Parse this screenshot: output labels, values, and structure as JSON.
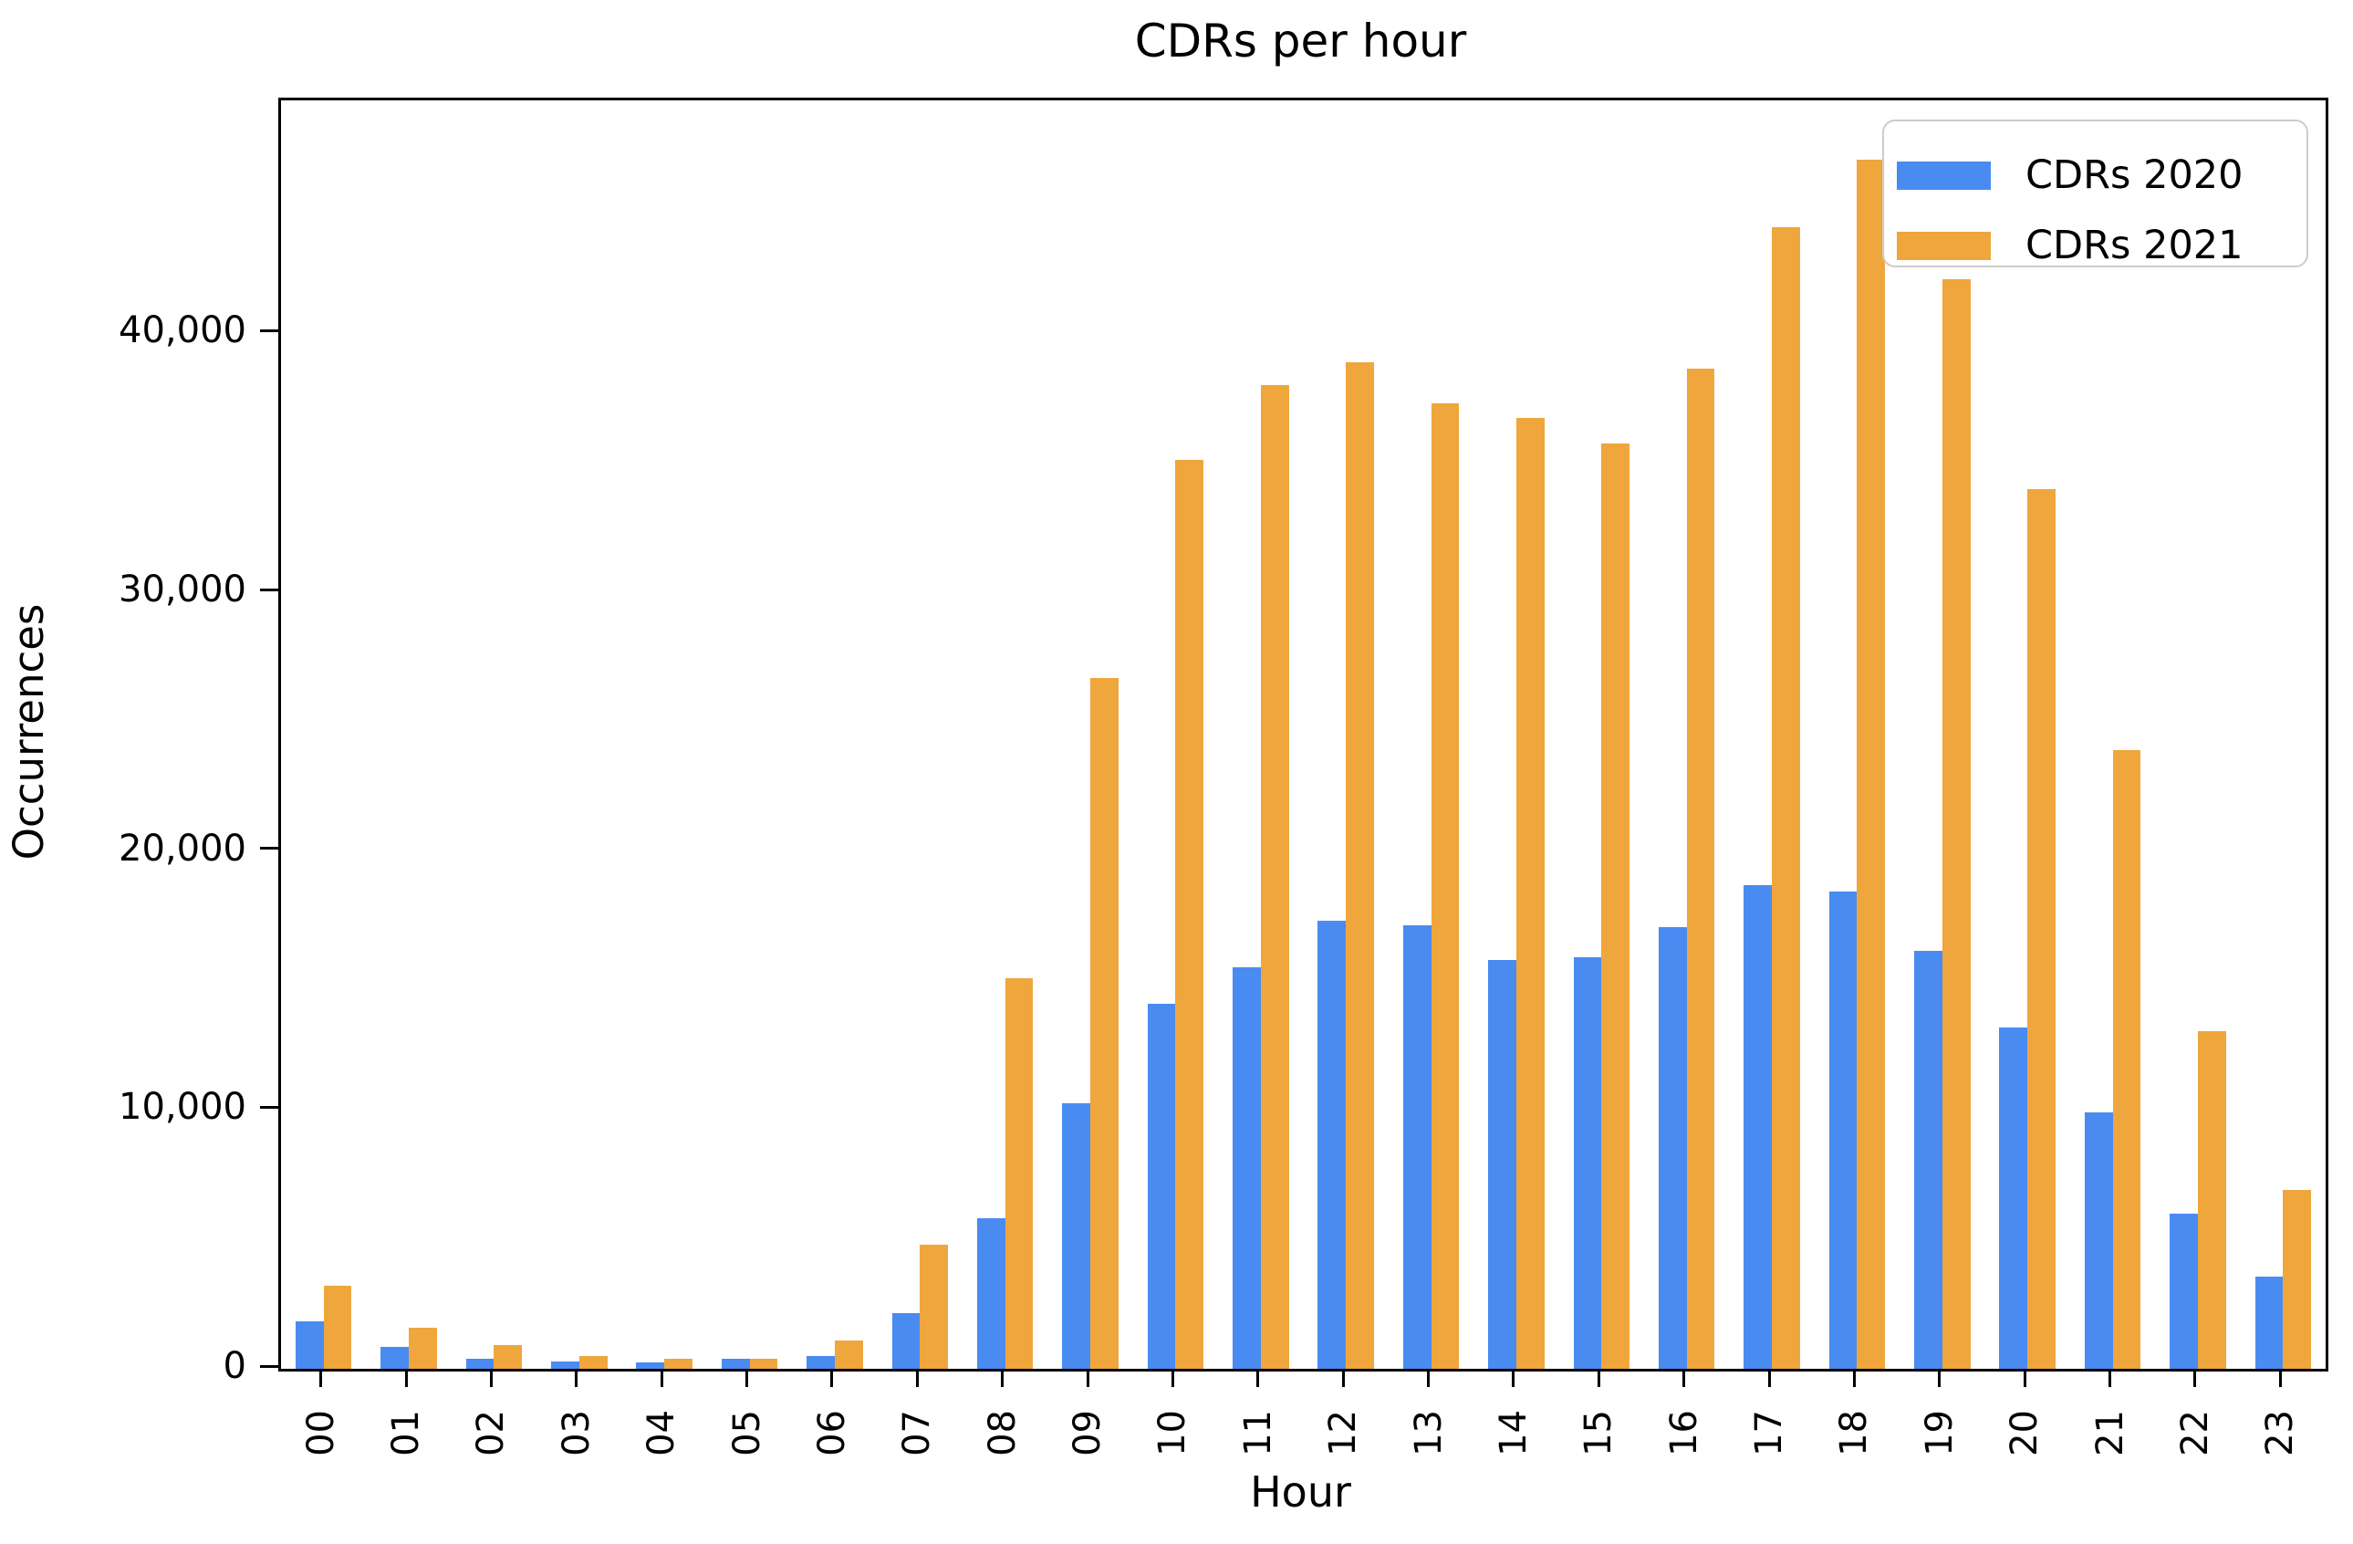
{
  "title": "CDRs per hour",
  "chart_data": {
    "type": "bar",
    "title": "CDRs per hour",
    "xlabel": "Hour",
    "ylabel": "Occurrences",
    "grid": false,
    "legend_position": "upper right",
    "categories": [
      "00",
      "01",
      "02",
      "03",
      "04",
      "05",
      "06",
      "07",
      "08",
      "09",
      "10",
      "11",
      "12",
      "13",
      "14",
      "15",
      "16",
      "17",
      "18",
      "19",
      "20",
      "21",
      "22",
      "23"
    ],
    "series": [
      {
        "name": "CDRs 2020",
        "color": "#4a8bf1",
        "values": [
          1850,
          850,
          400,
          300,
          250,
          400,
          500,
          2150,
          5800,
          10250,
          14100,
          15500,
          17300,
          17150,
          15800,
          15900,
          17050,
          18700,
          18450,
          16150,
          13200,
          9900,
          6000,
          3550
        ]
      },
      {
        "name": "CDRs 2021",
        "color": "#efa63d",
        "values": [
          3200,
          1600,
          900,
          500,
          400,
          400,
          1100,
          4800,
          15100,
          26700,
          35100,
          38000,
          38900,
          37300,
          36750,
          35750,
          38650,
          44100,
          46700,
          42100,
          34000,
          23900,
          13050,
          6900
        ]
      }
    ],
    "y_ticks": [
      {
        "value": 0,
        "label": "0"
      },
      {
        "value": 10000,
        "label": "10,000"
      },
      {
        "value": 20000,
        "label": "20,000"
      },
      {
        "value": 30000,
        "label": "30,000"
      },
      {
        "value": 40000,
        "label": "40,000"
      }
    ],
    "ylim": [
      0,
      49000
    ],
    "axis_color": "#000000"
  }
}
